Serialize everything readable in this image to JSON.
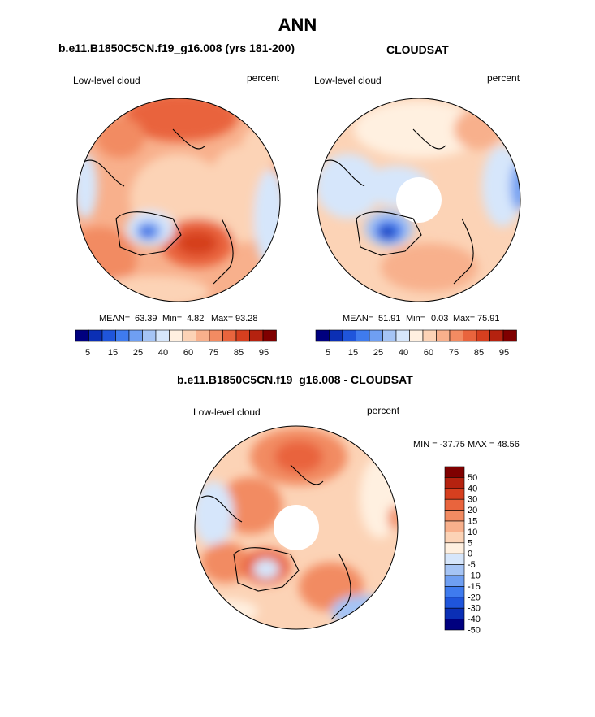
{
  "figure": {
    "title": "ANN",
    "left_title": "b.e11.B1850C5CN.f19_g16.008 (yrs 181-200)",
    "right_title": "CLOUDSAT",
    "diff_title": "b.e11.B1850C5CN.f19_g16.008 - CLOUDSAT"
  },
  "chart_data": [
    {
      "type": "heatmap",
      "name": "model",
      "projection": "north-polar-stereographic",
      "left_label": "Low-level cloud",
      "right_label": "percent",
      "stats_text": {
        "mean_label": "MEAN=",
        "mean": "63.39",
        "min_label": "Min=",
        "min": "4.82",
        "max_label": "Max=",
        "max": "93.28"
      },
      "colorbar_colors": [
        "#00007f",
        "#0b2fb5",
        "#1f55db",
        "#3f7bee",
        "#6f9ff2",
        "#a5c4f5",
        "#d6e6fb",
        "#fff0e0",
        "#fcd3b6",
        "#f8b08c",
        "#f28b62",
        "#e9643d",
        "#d63f1f",
        "#b5220f",
        "#7f0000"
      ],
      "colorbar_ticks": [
        "5",
        "15",
        "25",
        "40",
        "60",
        "75",
        "85",
        "95"
      ]
    },
    {
      "type": "heatmap",
      "name": "observation",
      "projection": "north-polar-stereographic",
      "left_label": "Low-level cloud",
      "right_label": "percent",
      "stats_text": {
        "mean_label": "MEAN=",
        "mean": "51.91",
        "min_label": "Min=",
        "min": "0.03",
        "max_label": "Max=",
        "max": "75.91"
      },
      "colorbar_colors": [
        "#00007f",
        "#0b2fb5",
        "#1f55db",
        "#3f7bee",
        "#6f9ff2",
        "#a5c4f5",
        "#d6e6fb",
        "#fff0e0",
        "#fcd3b6",
        "#f8b08c",
        "#f28b62",
        "#e9643d",
        "#d63f1f",
        "#b5220f",
        "#7f0000"
      ],
      "colorbar_ticks": [
        "5",
        "15",
        "25",
        "40",
        "60",
        "75",
        "85",
        "95"
      ]
    },
    {
      "type": "heatmap",
      "name": "difference",
      "projection": "north-polar-stereographic",
      "left_label": "Low-level cloud",
      "right_label": "percent",
      "stats_text": "MIN = -37.75 MAX =  48.56",
      "colorbar_colors": [
        "#00007f",
        "#0b2fb5",
        "#1f55db",
        "#3f7bee",
        "#6f9ff2",
        "#a5c4f5",
        "#d6e6fb",
        "#fff0e0",
        "#fcd3b6",
        "#f8b08c",
        "#f28b62",
        "#e9643d",
        "#d63f1f",
        "#b5220f",
        "#7f0000"
      ],
      "colorbar_ticks": [
        "50",
        "40",
        "30",
        "20",
        "15",
        "10",
        "5",
        "0",
        "-5",
        "-10",
        "-15",
        "-20",
        "-30",
        "-40",
        "-50"
      ]
    }
  ]
}
